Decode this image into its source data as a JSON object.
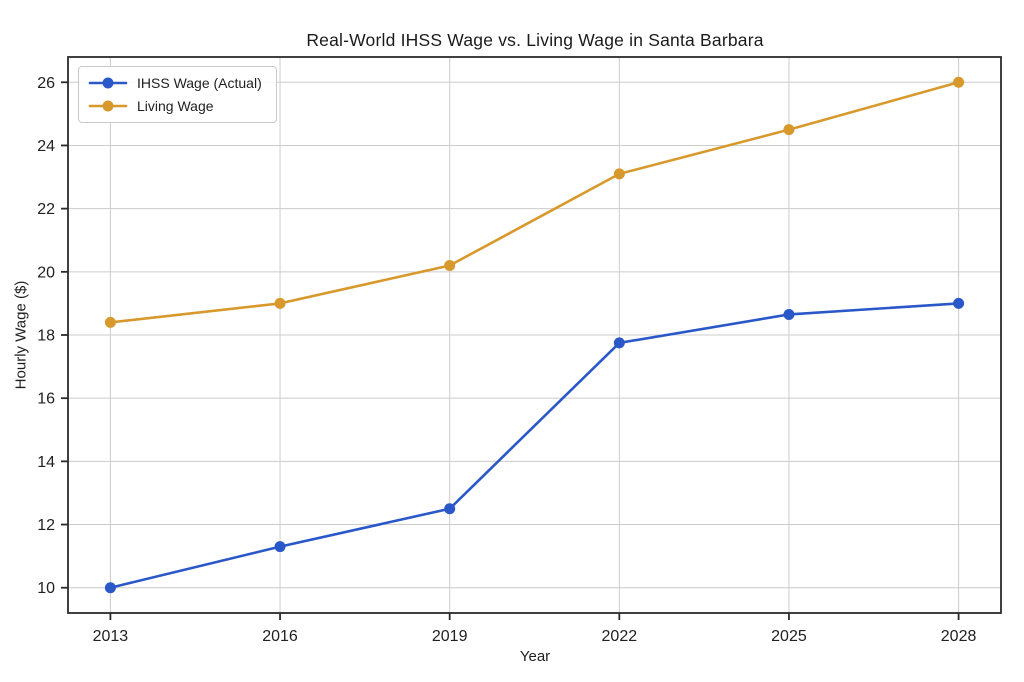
{
  "figure": {
    "background": "#ffffff"
  },
  "chart_data": {
    "type": "line",
    "title": "Real-World IHSS Wage vs. Living Wage in Santa Barbara",
    "xlabel": "Year",
    "ylabel": "Hourly Wage ($)",
    "x": [
      2013,
      2016,
      2019,
      2022,
      2025,
      2028
    ],
    "series": [
      {
        "name": "IHSS Wage (Actual)",
        "color": "#2a58c8",
        "marker": "circle",
        "values": [
          10.0,
          11.3,
          12.5,
          17.75,
          18.65,
          19.0
        ]
      },
      {
        "name": "Living Wage",
        "color": "#d8992c",
        "marker": "circle",
        "values": [
          18.4,
          19.0,
          20.2,
          23.1,
          24.5,
          26.0
        ]
      }
    ],
    "xtick_labels": [
      "2013",
      "2016",
      "2019",
      "2022",
      "2025",
      "2028"
    ],
    "xtick_values": [
      2013,
      2016,
      2019,
      2022,
      2025,
      2028
    ],
    "ytick_labels": [
      "10",
      "12",
      "14",
      "16",
      "18",
      "20",
      "22",
      "24",
      "26"
    ],
    "ytick_values": [
      10,
      12,
      14,
      16,
      18,
      20,
      22,
      24,
      26
    ],
    "xlim": [
      2012.25,
      2028.75
    ],
    "ylim": [
      9.2,
      26.8
    ],
    "grid": true,
    "legend_position": "upper left",
    "grid_color": "#cccccc",
    "axis_color": "#2b2b2b",
    "tick_label_color": "#212121"
  }
}
